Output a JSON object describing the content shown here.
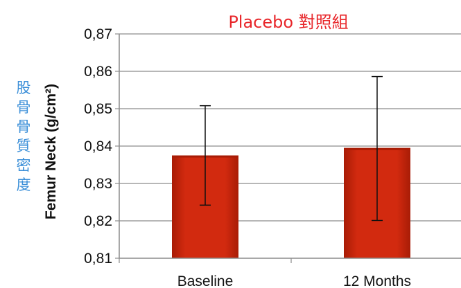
{
  "chart_data": {
    "type": "bar",
    "title": "Placebo 對照組",
    "side_label": "股骨骨質密度",
    "ylabel": "Femur Neck (g/cm²)",
    "xlabel": "",
    "categories": [
      "Baseline",
      "12 Months"
    ],
    "series": [
      {
        "values": [
          0.8375,
          0.8395
        ],
        "error_low": [
          0.8242,
          0.8201
        ],
        "error_high": [
          0.8508,
          0.8586
        ]
      }
    ],
    "ylim": [
      0.81,
      0.87
    ],
    "yticks": [
      0.81,
      0.82,
      0.83,
      0.84,
      0.85,
      0.86,
      0.87
    ],
    "ytick_labels": [
      "0,81",
      "0,82",
      "0,83",
      "0,84",
      "0,85",
      "0,86",
      "0,87"
    ],
    "grid": true,
    "colors": {
      "bar": "#d22a0f",
      "bar_dark": "#a81c06",
      "title": "#e8262a",
      "side_label": "#3b8fd8"
    }
  }
}
